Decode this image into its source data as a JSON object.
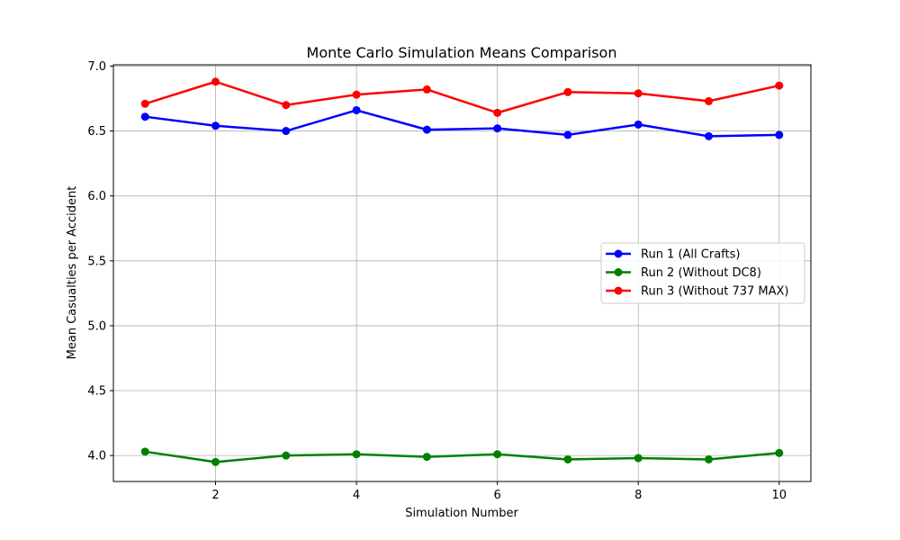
{
  "chart_data": {
    "type": "line",
    "title": "Monte Carlo Simulation Means Comparison",
    "xlabel": "Simulation Number",
    "ylabel": "Mean Casualties per Accident",
    "x": [
      1,
      2,
      3,
      4,
      5,
      6,
      7,
      8,
      9,
      10
    ],
    "xlim": [
      0.55,
      10.45
    ],
    "ylim": [
      3.8,
      7.01
    ],
    "xticks": [
      2,
      4,
      6,
      8,
      10
    ],
    "xtick_labels": [
      "2",
      "4",
      "6",
      "8",
      "10"
    ],
    "yticks": [
      4.0,
      4.5,
      5.0,
      5.5,
      6.0,
      6.5,
      7.0
    ],
    "ytick_labels": [
      "4.0",
      "4.5",
      "5.0",
      "5.5",
      "6.0",
      "6.5",
      "7.0"
    ],
    "grid": true,
    "legend_position": "center-right",
    "series": [
      {
        "name": "Run 1 (All Crafts)",
        "color": "#0000ff",
        "marker": "circle",
        "values": [
          6.61,
          6.54,
          6.5,
          6.66,
          6.51,
          6.52,
          6.47,
          6.55,
          6.46,
          6.47
        ]
      },
      {
        "name": "Run 2 (Without DC8)",
        "color": "#008000",
        "marker": "circle",
        "values": [
          4.03,
          3.95,
          4.0,
          4.01,
          3.99,
          4.01,
          3.97,
          3.98,
          3.97,
          4.02
        ]
      },
      {
        "name": "Run 3 (Without 737 MAX)",
        "color": "#ff0000",
        "marker": "circle",
        "values": [
          6.71,
          6.88,
          6.7,
          6.78,
          6.82,
          6.64,
          6.8,
          6.79,
          6.73,
          6.85
        ]
      }
    ]
  }
}
